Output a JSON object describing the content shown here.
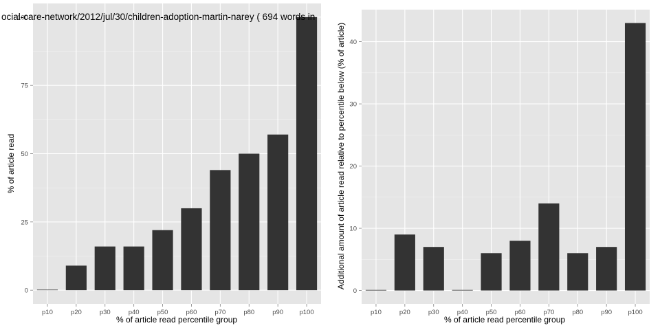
{
  "chart_data": [
    {
      "type": "bar",
      "title": "ocial-care-network/2012/jul/30/children-adoption-martin-narey ( 694 words in",
      "xlabel": "% of article read percentile group",
      "ylabel": "% of article read",
      "categories": [
        "p10",
        "p20",
        "p30",
        "p40",
        "p50",
        "p60",
        "p70",
        "p80",
        "p90",
        "p100"
      ],
      "values": [
        0,
        9,
        16,
        16,
        22,
        30,
        44,
        50,
        57,
        100
      ],
      "ylim": [
        -5,
        105
      ],
      "yticks": [
        0,
        25,
        50,
        75,
        100
      ],
      "grid": true,
      "colors": {
        "bar": "#333333",
        "panel": "#e5e5e5",
        "grid": "#ffffff"
      }
    },
    {
      "type": "bar",
      "title": "",
      "xlabel": "% of article read percentile group",
      "ylabel": "Additional amount of article read relative to percentile below (% of article)",
      "categories": [
        "p10",
        "p20",
        "p30",
        "p40",
        "p50",
        "p60",
        "p70",
        "p80",
        "p90",
        "p100"
      ],
      "values": [
        0,
        9,
        7,
        0,
        6,
        8,
        14,
        6,
        7,
        43
      ],
      "ylim": [
        -2.15,
        45.15
      ],
      "yticks": [
        0,
        10,
        20,
        30,
        40
      ],
      "grid": true,
      "colors": {
        "bar": "#333333",
        "panel": "#e5e5e5",
        "grid": "#ffffff"
      }
    }
  ]
}
